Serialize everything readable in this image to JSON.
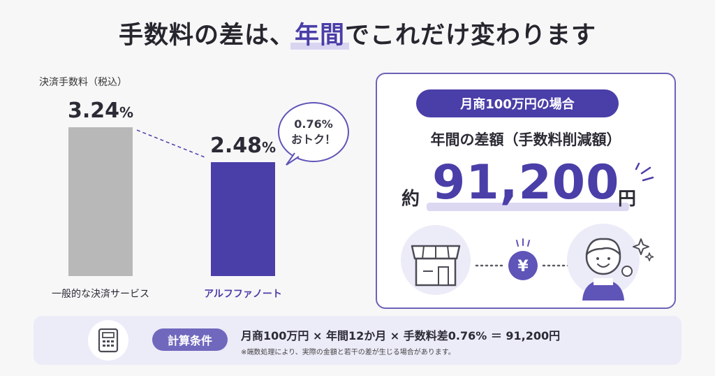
{
  "headline": {
    "prefix": "手数料の差は、",
    "highlight": "年間",
    "suffix": "でこれだけ変わります"
  },
  "chart_data": {
    "type": "bar",
    "title": "",
    "ylabel": "決済手数料（税込）",
    "categories": [
      "一般的な決済サービス",
      "アルフファノート"
    ],
    "values": [
      3.24,
      2.48
    ],
    "value_labels": [
      "3.24",
      "2.48"
    ],
    "value_unit": "%",
    "ylim": [
      0,
      3.5
    ],
    "bar_colors": [
      "#b8b8b8",
      "#4a3ea8"
    ],
    "category_colors": [
      "#2b2b35",
      "#4a3ea8"
    ],
    "grid": false
  },
  "bubble": {
    "line1": "0.76%",
    "line2": "おトク！"
  },
  "summary": {
    "pill": "月商100万円の場合",
    "label": "年間の差額（手数料削減額）",
    "prefix": "約",
    "value": "91,200",
    "unit": "円",
    "coin_symbol": "¥"
  },
  "icons": {
    "store": "store-icon",
    "yen": "yen-coin-icon",
    "person": "happy-person-icon",
    "calculator": "calculator-icon",
    "sparkle": "sparkle-icon"
  },
  "footer": {
    "pill": "計算条件",
    "formula": "月商100万円 × 年間12か月 × 手数料差0.76% ＝ 91,200円",
    "note": "※端数処理により、実際の金額と若干の差が生じる場合があります。"
  },
  "colors": {
    "accent": "#4a3ea8",
    "gray_bar": "#b8b8b8",
    "footer_bg": "#ecebf8"
  }
}
